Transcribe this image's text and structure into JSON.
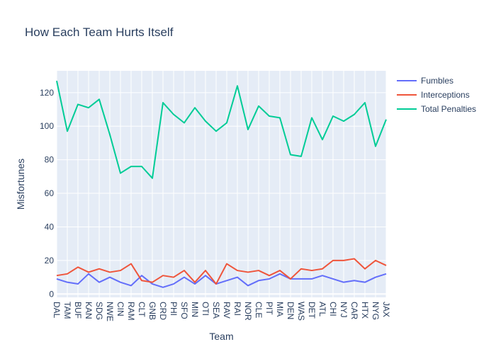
{
  "chart_data": {
    "type": "line",
    "title": "How Each Team Hurts Itself",
    "xlabel": "Team",
    "ylabel": "Misfortunes",
    "ylim": [
      -2,
      133
    ],
    "yticks": [
      0,
      20,
      40,
      60,
      80,
      100,
      120
    ],
    "grid": true,
    "legend_position": "top-right",
    "categories": [
      "DAL",
      "TAM",
      "BUF",
      "KAN",
      "SDG",
      "NWE",
      "CIN",
      "RAM",
      "CLT",
      "GNB",
      "CRD",
      "PHI",
      "SFO",
      "MIN",
      "OTI",
      "SEA",
      "RAV",
      "RAI",
      "NOR",
      "CLE",
      "PIT",
      "MIA",
      "DEN",
      "WAS",
      "DET",
      "ATL",
      "CHI",
      "NYJ",
      "CAR",
      "HTX",
      "NYG",
      "JAX"
    ],
    "series": [
      {
        "name": "Fumbles",
        "color": "#636efa",
        "values": [
          9,
          7,
          6,
          12,
          7,
          10,
          7,
          5,
          11,
          6,
          4,
          6,
          10,
          6,
          11,
          6,
          8,
          10,
          5,
          8,
          9,
          12,
          9,
          9,
          9,
          11,
          9,
          7,
          8,
          7,
          10,
          12
        ]
      },
      {
        "name": "Interceptions",
        "color": "#ef553b",
        "values": [
          11,
          12,
          16,
          13,
          15,
          13,
          14,
          18,
          8,
          7,
          11,
          10,
          14,
          7,
          14,
          6,
          18,
          14,
          13,
          14,
          11,
          14,
          9,
          15,
          14,
          15,
          20,
          20,
          21,
          15,
          20,
          17
        ]
      },
      {
        "name": "Total Penalties",
        "color": "#00cc96",
        "values": [
          127,
          97,
          113,
          111,
          116,
          95,
          72,
          76,
          76,
          69,
          114,
          107,
          102,
          111,
          103,
          97,
          102,
          124,
          98,
          112,
          106,
          105,
          83,
          82,
          105,
          92,
          106,
          103,
          107,
          114,
          88,
          104
        ]
      }
    ]
  }
}
